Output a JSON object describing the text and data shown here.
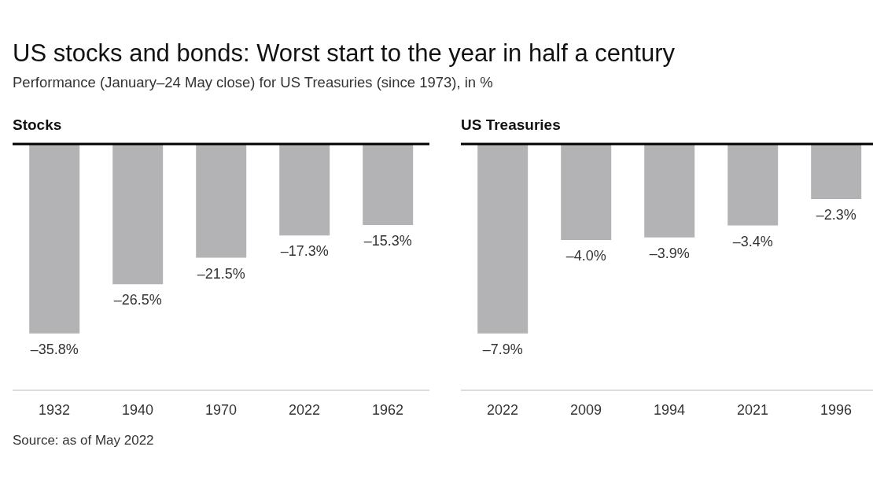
{
  "chart_data": [
    {
      "type": "other",
      "title": "US stocks and bonds: Worst start to the year in half a century",
      "subtitle": "Performance (January–24 May close) for US Treasuries (since 1973), in %",
      "annotations": [
        "Source: as of May 2022"
      ]
    },
    {
      "type": "bar",
      "title": "Stocks",
      "categories": [
        "1932",
        "1940",
        "1970",
        "2022",
        "1962"
      ],
      "values": [
        -35.8,
        -26.5,
        -21.5,
        -17.3,
        -15.3
      ],
      "color": "#b3b3b5",
      "value_labels": [
        "–35.8%",
        "–26.5%",
        "–21.5%",
        "–17.3%",
        "–15.3%"
      ]
    },
    {
      "type": "bar",
      "title": "US Treasuries",
      "categories": [
        "2022",
        "2009",
        "1994",
        "2021",
        "1996"
      ],
      "values": [
        -7.9,
        -4.0,
        -3.9,
        -3.4,
        -2.3
      ],
      "color": "#b3b3b5",
      "value_labels": [
        "–7.9%",
        "–4.0%",
        "–3.9%",
        "–3.4%",
        "–2.3%"
      ]
    }
  ]
}
